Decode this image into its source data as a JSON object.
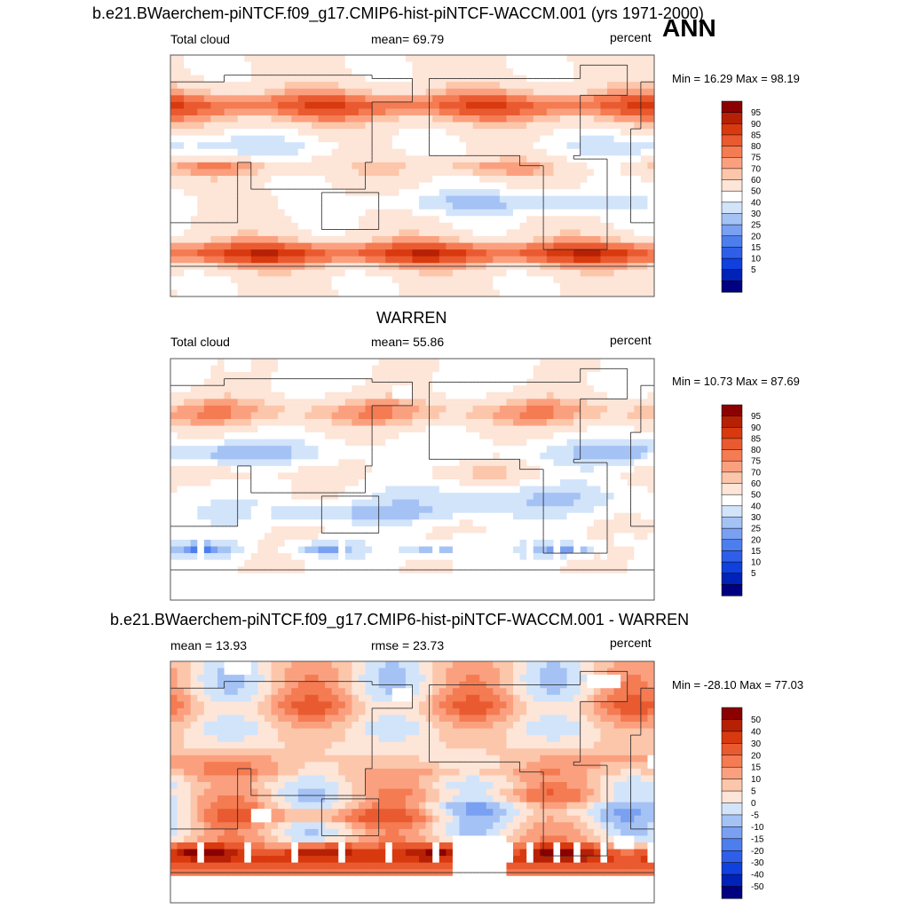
{
  "figure": {
    "title": "b.e21.BWaerchem-piNTCF.f09_g17.CMIP6-hist-piNTCF-WACCM.001 (yrs 1971-2000)",
    "season": "ANN"
  },
  "colors": {
    "abs_levels": [
      "#000080",
      "#0022b8",
      "#1040dd",
      "#2f5fe8",
      "#4d7eee",
      "#7aa0f2",
      "#a5c2f5",
      "#d2e4fa",
      "#ffffff",
      "#fde5d8",
      "#fcc6ab",
      "#fba07f",
      "#f47b52",
      "#ea5a30",
      "#d8390f",
      "#b62005",
      "#8b0000"
    ],
    "diff_levels": [
      "#000080",
      "#0022b8",
      "#1040dd",
      "#2f5fe8",
      "#4d7eee",
      "#7aa0f2",
      "#a5c2f5",
      "#d2e4fa",
      "#fde5d8",
      "#fcc6ab",
      "#fba07f",
      "#f47b52",
      "#ea5a30",
      "#d8390f",
      "#b62005",
      "#8b0000"
    ],
    "land_outline": "#222222",
    "missing": "#ffffff"
  },
  "panels": [
    {
      "top_title": "",
      "left": "Total cloud",
      "center": "mean=  69.79",
      "right": "percent",
      "minmax": "Min =  16.29 Max =  98.19",
      "cb_labels": [
        "95",
        "90",
        "85",
        "80",
        "75",
        "70",
        "60",
        "50",
        "40",
        "30",
        "25",
        "20",
        "15",
        "10",
        "5"
      ]
    },
    {
      "top_title": "WARREN",
      "left": "Total cloud",
      "center": "mean=  55.86",
      "right": "percent",
      "minmax": "Min =  10.73 Max =  87.69",
      "cb_labels": [
        "95",
        "90",
        "85",
        "80",
        "75",
        "70",
        "60",
        "50",
        "40",
        "30",
        "25",
        "20",
        "15",
        "10",
        "5"
      ]
    },
    {
      "top_title": "b.e21.BWaerchem-piNTCF.f09_g17.CMIP6-hist-piNTCF-WACCM.001 - WARREN",
      "left": "mean =  13.93",
      "center": "rmse =  23.73",
      "right": "percent",
      "minmax": "Min = -28.10 Max =  77.03",
      "cb_labels": [
        "50",
        "40",
        "30",
        "20",
        "15",
        "10",
        "5",
        "0",
        "-5",
        "-10",
        "-15",
        "-20",
        "-30",
        "-40",
        "-50"
      ]
    }
  ],
  "chart_data": [
    {
      "type": "heatmap",
      "title": "b.e21.BWaerchem-piNTCF.f09_g17.CMIP6-hist-piNTCF-WACCM.001 (yrs 1971-2000)",
      "variable": "Total cloud",
      "units": "percent",
      "mean": 69.79,
      "min": 16.29,
      "max": 98.19,
      "contour_levels": [
        5,
        10,
        15,
        20,
        25,
        30,
        40,
        50,
        60,
        70,
        75,
        80,
        85,
        90,
        95
      ]
    },
    {
      "type": "heatmap",
      "title": "WARREN",
      "variable": "Total cloud",
      "units": "percent",
      "mean": 55.86,
      "min": 10.73,
      "max": 87.69,
      "contour_levels": [
        5,
        10,
        15,
        20,
        25,
        30,
        40,
        50,
        60,
        70,
        75,
        80,
        85,
        90,
        95
      ]
    },
    {
      "type": "heatmap",
      "title": "b.e21.BWaerchem-piNTCF.f09_g17.CMIP6-hist-piNTCF-WACCM.001 - WARREN",
      "units": "percent",
      "mean": 13.93,
      "rmse": 23.73,
      "min": -28.1,
      "max": 77.03,
      "contour_levels": [
        -50,
        -40,
        -30,
        -20,
        -15,
        -10,
        -5,
        0,
        5,
        10,
        15,
        20,
        30,
        40,
        50
      ]
    }
  ]
}
